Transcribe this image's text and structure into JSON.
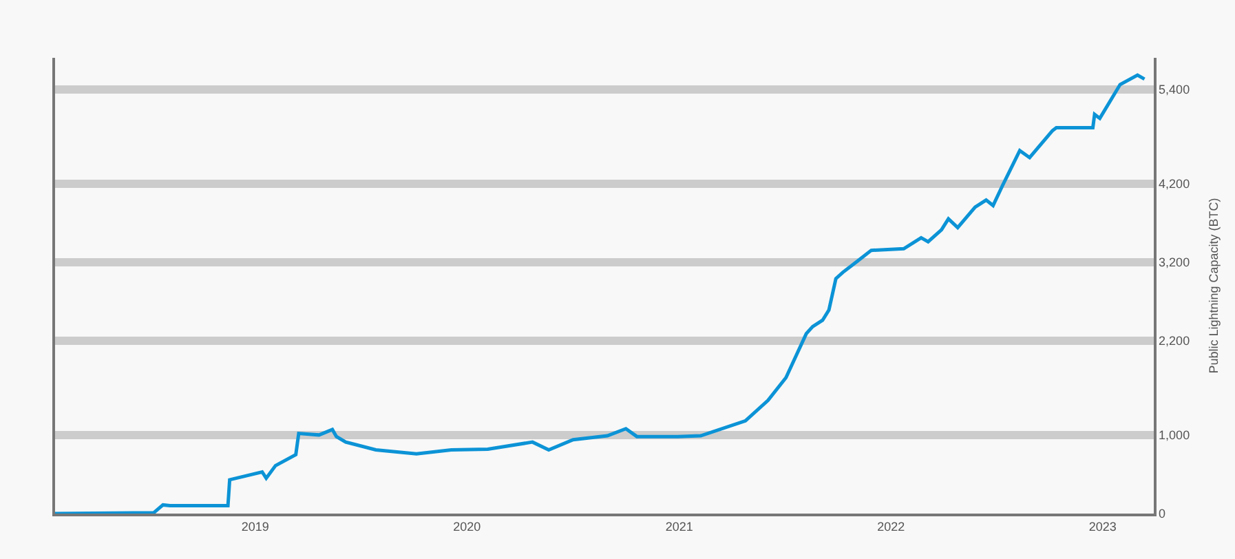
{
  "chart_data": {
    "type": "line",
    "ylabel": "Public Lightning Capacity (BTC)",
    "x": [
      "2018-01-21",
      "2018-07-10",
      "2018-07-26",
      "2018-08-07",
      "2018-11-15",
      "2018-11-18",
      "2019-01-13",
      "2019-01-20",
      "2019-02-05",
      "2019-03-12",
      "2019-03-17",
      "2019-04-21",
      "2019-05-14",
      "2019-05-21",
      "2019-06-06",
      "2019-07-28",
      "2019-10-06",
      "2019-12-05",
      "2020-02-06",
      "2020-04-23",
      "2020-05-21",
      "2020-07-02",
      "2020-08-30",
      "2020-10-01",
      "2020-10-20",
      "2020-12-29",
      "2021-02-07",
      "2021-04-25",
      "2021-06-03",
      "2021-07-04",
      "2021-08-08",
      "2021-08-19",
      "2021-09-05",
      "2021-09-16",
      "2021-09-28",
      "2021-10-10",
      "2021-11-02",
      "2021-11-28",
      "2022-01-23",
      "2022-02-22",
      "2022-03-06",
      "2022-03-29",
      "2022-04-10",
      "2022-04-26",
      "2022-05-26",
      "2022-06-14",
      "2022-06-26",
      "2022-07-12",
      "2022-08-11",
      "2022-08-28",
      "2022-10-06",
      "2022-10-13",
      "2022-12-15",
      "2022-12-18",
      "2022-12-27",
      "2023-01-31",
      "2023-03-02",
      "2023-03-14"
    ],
    "series": [
      {
        "color": "#0c93d6",
        "values": [
          0,
          10,
          110,
          100,
          100,
          430,
          530,
          450,
          610,
          750,
          1020,
          1000,
          1070,
          980,
          910,
          810,
          760,
          810,
          820,
          910,
          810,
          940,
          990,
          1080,
          980,
          980,
          990,
          1180,
          1440,
          1730,
          2290,
          2380,
          2460,
          2590,
          2990,
          3070,
          3200,
          3350,
          3370,
          3510,
          3460,
          3610,
          3750,
          3640,
          3900,
          3990,
          3920,
          4170,
          4620,
          4530,
          4870,
          4910,
          4910,
          5080,
          5030,
          5460,
          5580,
          5530
        ]
      }
    ],
    "xlim": [
      "2018-01-21",
      "2023-03-30"
    ],
    "xticks": [
      {
        "value": "2019-01-01",
        "label": "2019"
      },
      {
        "value": "2020-01-01",
        "label": "2020"
      },
      {
        "value": "2021-01-01",
        "label": "2021"
      },
      {
        "value": "2022-01-01",
        "label": "2022"
      },
      {
        "value": "2023-01-01",
        "label": "2023"
      }
    ],
    "ylim": [
      0,
      5800
    ],
    "yticks": [
      0,
      {
        "value": 1000,
        "label": "1,000"
      },
      {
        "value": 2200,
        "label": "2,200"
      },
      {
        "value": 3200,
        "label": "3,200"
      },
      {
        "value": 4200,
        "label": "4,200"
      },
      {
        "value": 5400,
        "label": "5,400"
      }
    ],
    "grid": "y",
    "marker": "none",
    "line_style": "solid"
  }
}
